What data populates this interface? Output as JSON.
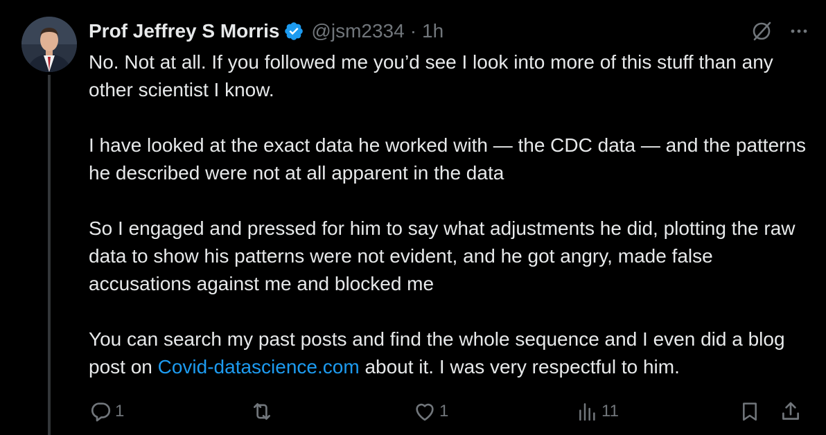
{
  "author": {
    "name": "Prof Jeffrey S Morris",
    "handle": "@jsm2334",
    "separator": "·",
    "time": "1h"
  },
  "tweet": {
    "line1": "No.  Not at all.  If you followed me you’d see I look into more of this stuff than any other scientist I know.",
    "para2": "I have looked at the exact data he worked with — the CDC data — and the patterns he described were not at all apparent in the data",
    "para3": "So I engaged and pressed for him to say what adjustments he did, plotting the raw data to show his patterns were not evident, and he got angry, made false accusations against me and blocked me",
    "para4_before": "You can search my past posts and find the whole sequence and I even did a blog post on ",
    "para4_link": "Covid-datascience.com",
    "para4_after": " about it.  I was very respectful to him."
  },
  "actions": {
    "reply_count": "1",
    "repost_count": "",
    "like_count": "1",
    "views_count": "11"
  },
  "icons": {
    "verified": "verified-badge-icon",
    "grok": "slash-circle-icon",
    "more": "more-icon",
    "reply": "reply-icon",
    "repost": "repost-icon",
    "like": "heart-icon",
    "views": "views-icon",
    "bookmark": "bookmark-icon",
    "share": "share-icon"
  },
  "colors": {
    "background": "#000000",
    "text": "#e7e9ea",
    "muted": "#71767b",
    "link": "#1d9bf0",
    "verified": "#1d9bf0"
  }
}
